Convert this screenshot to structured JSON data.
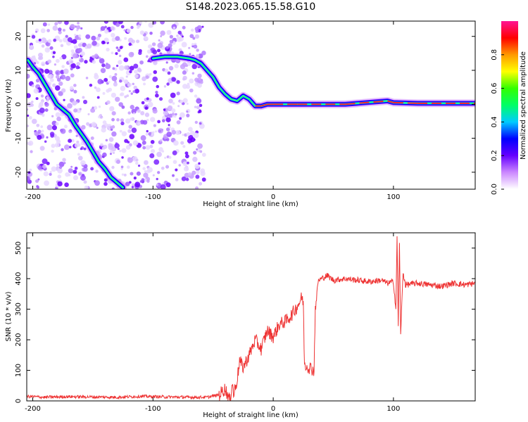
{
  "figure": {
    "title": "S148.2023.065.15.58.G10"
  },
  "chart_data": [
    {
      "type": "heatmap",
      "xlabel": "Height of straight line (km)",
      "ylabel": "Frequency (Hz)",
      "xlim": [
        -205,
        168
      ],
      "ylim": [
        -25,
        24.5
      ],
      "xticks": [
        -200,
        -100,
        0,
        100
      ],
      "yticks": [
        -20,
        -10,
        0,
        10,
        20
      ],
      "grid": false,
      "colorbar": {
        "label": "Normalized spectral amplitude",
        "range": [
          0,
          1
        ],
        "ticks": [
          0.0,
          0.2,
          0.4,
          0.6,
          0.8
        ],
        "colormap": [
          "#ffffff",
          "#cc88ff",
          "#6600ff",
          "#0000ff",
          "#00ccff",
          "#00ff66",
          "#33ff00",
          "#ffff00",
          "#ff9900",
          "#ff0000",
          "#ff1493"
        ]
      },
      "ridge": {
        "x": [
          -204,
          -200,
          -195,
          -190,
          -185,
          -180,
          -175,
          -170,
          -165,
          -160,
          -155,
          -150,
          -145,
          -140,
          -135,
          -130,
          -125
        ],
        "y": [
          13,
          11,
          9,
          6,
          3,
          0,
          -1.5,
          -3,
          -6,
          -8.5,
          -11,
          -14,
          -17,
          -19,
          -21.5,
          -23,
          -24.5
        ]
      },
      "ridge_upper": {
        "x": [
          -100,
          -90,
          -80,
          -70,
          -65,
          -60,
          -55,
          -50,
          -45,
          -40,
          -35,
          -30,
          -25,
          -20,
          -15,
          -10,
          -5,
          0,
          20,
          60,
          95,
          100,
          120,
          168
        ],
        "y": [
          13.5,
          14,
          14,
          13.5,
          13,
          12,
          10,
          8,
          5,
          3,
          1.5,
          1,
          2.5,
          1.5,
          -0.5,
          -0.5,
          0,
          0,
          0,
          0,
          1,
          0.5,
          0.3,
          0.3
        ]
      },
      "noise_region_x": [
        -205,
        -57
      ]
    },
    {
      "type": "line",
      "xlabel": "Height of straight line (km)",
      "ylabel": "SNR (10 * v/v)",
      "xlim": [
        -205,
        168
      ],
      "ylim": [
        0,
        550
      ],
      "xticks": [
        -200,
        -100,
        0,
        100
      ],
      "yticks": [
        0,
        100,
        200,
        300,
        400,
        500
      ],
      "grid": false,
      "color": "#ee3333",
      "series": [
        {
          "x": [
            -205,
            -190,
            -170,
            -150,
            -130,
            -110,
            -90,
            -70,
            -55,
            -45,
            -40,
            -36,
            -34,
            -33,
            -30,
            -28,
            -25,
            -20,
            -15,
            -10,
            -5,
            0,
            5,
            10,
            15,
            20,
            24,
            25,
            26,
            30,
            34,
            35,
            36,
            37,
            38,
            40,
            45,
            50,
            60,
            70,
            80,
            90,
            95,
            100,
            102,
            103,
            104,
            105,
            106,
            108,
            110,
            120,
            130,
            140,
            150,
            160,
            168
          ],
          "y": [
            15,
            12,
            14,
            13,
            12,
            15,
            13,
            12,
            12,
            20,
            40,
            0,
            60,
            20,
            70,
            130,
            110,
            150,
            200,
            170,
            230,
            210,
            250,
            260,
            280,
            310,
            340,
            320,
            120,
            110,
            100,
            310,
            330,
            385,
            395,
            400,
            410,
            395,
            400,
            395,
            390,
            395,
            385,
            390,
            300,
            530,
            250,
            510,
            220,
            420,
            380,
            385,
            380,
            375,
            385,
            380,
            385
          ]
        }
      ]
    }
  ]
}
